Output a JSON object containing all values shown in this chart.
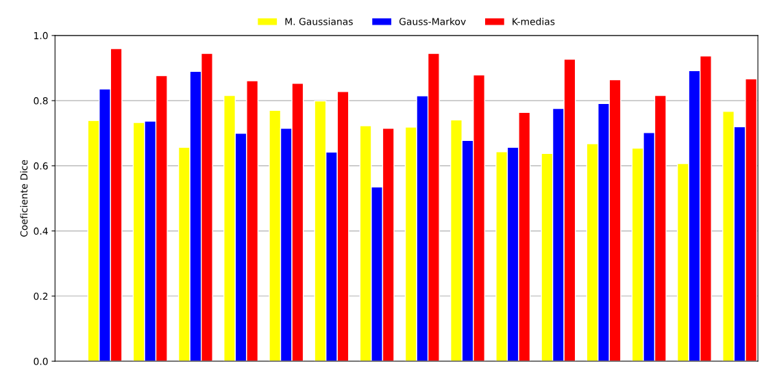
{
  "chart_data": {
    "type": "bar",
    "ylabel": "Coeficiente Dice",
    "categories": [
      null,
      null,
      null,
      null,
      null,
      null,
      null,
      null,
      null,
      null,
      null,
      null,
      null,
      null,
      null
    ],
    "series": [
      {
        "name": "M. Gaussianas",
        "color": "#ffff00",
        "values": [
          0.739,
          0.733,
          0.657,
          0.816,
          0.77,
          0.799,
          0.723,
          0.719,
          0.741,
          0.643,
          0.638,
          0.668,
          0.654,
          0.607,
          0.767
        ]
      },
      {
        "name": "Gauss-Markov",
        "color": "#0000ff",
        "values": [
          0.836,
          0.737,
          0.89,
          0.7,
          0.715,
          0.642,
          0.535,
          0.815,
          0.678,
          0.657,
          0.776,
          0.791,
          0.702,
          0.892,
          0.72
        ]
      },
      {
        "name": "K-medias",
        "color": "#ff0000",
        "values": [
          0.96,
          0.877,
          0.945,
          0.861,
          0.853,
          0.828,
          0.715,
          0.945,
          0.879,
          0.764,
          0.927,
          0.864,
          0.816,
          0.937,
          0.867
        ]
      }
    ],
    "ylim": [
      0,
      1.0
    ],
    "yticks": [
      {
        "value": 0,
        "label": "0.0"
      },
      0.2,
      0.4,
      0.6,
      0.8,
      {
        "value": 1,
        "label": "1.0"
      }
    ],
    "grid": "y",
    "legend": "top",
    "tick_labels": "y"
  }
}
